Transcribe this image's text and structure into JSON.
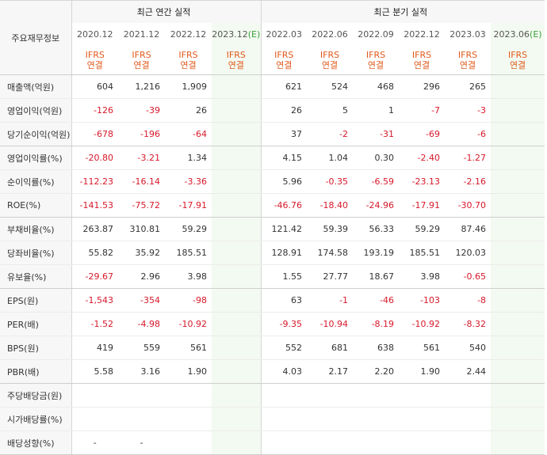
{
  "table": {
    "label_header": "주요재무정보",
    "annual_group": "최근 연간 실적",
    "quarter_group": "최근 분기 실적",
    "periods": [
      {
        "date": "2020.12",
        "est": ""
      },
      {
        "date": "2021.12",
        "est": ""
      },
      {
        "date": "2022.12",
        "est": ""
      },
      {
        "date": "2023.12",
        "est": "(E)"
      },
      {
        "date": "2022.03",
        "est": ""
      },
      {
        "date": "2022.06",
        "est": ""
      },
      {
        "date": "2022.09",
        "est": ""
      },
      {
        "date": "2022.12",
        "est": ""
      },
      {
        "date": "2023.03",
        "est": ""
      },
      {
        "date": "2023.06",
        "est": "(E)"
      }
    ],
    "basis_top": "IFRS",
    "basis_bottom": "연결",
    "rows": [
      {
        "label": "매출액(억원)",
        "values": [
          "604",
          "1,216",
          "1,909",
          "",
          "621",
          "524",
          "468",
          "296",
          "265",
          ""
        ]
      },
      {
        "label": "영업이익(억원)",
        "values": [
          "-126",
          "-39",
          "26",
          "",
          "26",
          "5",
          "1",
          "-7",
          "-3",
          ""
        ]
      },
      {
        "label": "당기순이익(억원)",
        "values": [
          "-678",
          "-196",
          "-64",
          "",
          "37",
          "-2",
          "-31",
          "-69",
          "-6",
          ""
        ]
      },
      {
        "label": "영업이익률(%)",
        "values": [
          "-20.80",
          "-3.21",
          "1.34",
          "",
          "4.15",
          "1.04",
          "0.30",
          "-2.40",
          "-1.27",
          ""
        ]
      },
      {
        "label": "순이익률(%)",
        "values": [
          "-112.23",
          "-16.14",
          "-3.36",
          "",
          "5.96",
          "-0.35",
          "-6.59",
          "-23.13",
          "-2.16",
          ""
        ]
      },
      {
        "label": "ROE(%)",
        "values": [
          "-141.53",
          "-75.72",
          "-17.91",
          "",
          "-46.76",
          "-18.40",
          "-24.96",
          "-17.91",
          "-30.70",
          ""
        ]
      },
      {
        "label": "부채비율(%)",
        "values": [
          "263.87",
          "310.81",
          "59.29",
          "",
          "121.42",
          "59.39",
          "56.33",
          "59.29",
          "87.46",
          ""
        ]
      },
      {
        "label": "당좌비율(%)",
        "values": [
          "55.82",
          "35.92",
          "185.51",
          "",
          "128.91",
          "174.58",
          "193.19",
          "185.51",
          "120.03",
          ""
        ]
      },
      {
        "label": "유보율(%)",
        "values": [
          "-29.67",
          "2.96",
          "3.98",
          "",
          "1.55",
          "27.77",
          "18.67",
          "3.98",
          "-0.65",
          ""
        ]
      },
      {
        "label": "EPS(원)",
        "values": [
          "-1,543",
          "-354",
          "-98",
          "",
          "63",
          "-1",
          "-46",
          "-103",
          "-8",
          ""
        ]
      },
      {
        "label": "PER(배)",
        "values": [
          "-1.52",
          "-4.98",
          "-10.92",
          "",
          "-9.35",
          "-10.94",
          "-8.19",
          "-10.92",
          "-8.32",
          ""
        ]
      },
      {
        "label": "BPS(원)",
        "values": [
          "419",
          "559",
          "561",
          "",
          "552",
          "681",
          "638",
          "561",
          "540",
          ""
        ]
      },
      {
        "label": "PBR(배)",
        "values": [
          "5.58",
          "3.16",
          "1.90",
          "",
          "4.03",
          "2.17",
          "2.20",
          "1.90",
          "2.44",
          ""
        ]
      },
      {
        "label": "주당배당금(원)",
        "values": [
          "",
          "",
          "",
          "",
          "",
          "",
          "",
          "",
          "",
          ""
        ]
      },
      {
        "label": "시가배당률(%)",
        "values": [
          "",
          "",
          "",
          "",
          "",
          "",
          "",
          "",
          "",
          ""
        ]
      },
      {
        "label": "배당성향(%)",
        "values": [
          "-",
          "-",
          "",
          "",
          "",
          "",
          "",
          "",
          "",
          ""
        ]
      }
    ]
  },
  "colors": {
    "negative": "#d7182a",
    "basis": "#e05a1c",
    "estimate_bg": "#f3faf1",
    "estimate_mark": "#3aa03a"
  }
}
